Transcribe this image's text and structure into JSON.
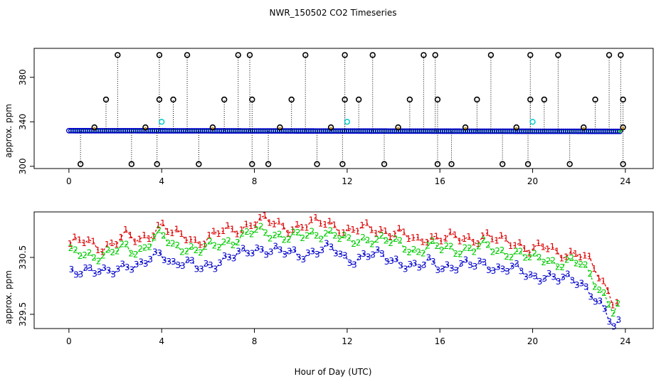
{
  "figure": {
    "title": "NWR_150502  CO2 Timeseries",
    "shared_xlabel": "Hour of Day (UTC)"
  },
  "colors": {
    "black": "#000000",
    "blue": "#0000cc",
    "cyan": "#00cccc",
    "green": "#00cc00",
    "red": "#dd0000",
    "orange": "#cc8800"
  },
  "chart_data": [
    {
      "type": "scatter",
      "panel": "top",
      "title": "",
      "xlabel": "",
      "ylabel": "approx. ppm",
      "xlim": [
        -1.5,
        25.2
      ],
      "ylim": [
        298,
        406
      ],
      "x_ticks": [
        0,
        4,
        8,
        12,
        16,
        20,
        24
      ],
      "y_ticks": [
        300,
        340,
        380
      ],
      "y_tick_labels": [
        "300",
        "340",
        "380"
      ],
      "baseline_series": [
        {
          "name": "blue",
          "x_start": 0.0,
          "x_end": 23.8,
          "y_start": 332.0,
          "y_end": 331.4
        }
      ],
      "spikes": [
        {
          "x": 0.5,
          "y": 302
        },
        {
          "x": 1.1,
          "y": 335
        },
        {
          "x": 1.6,
          "y": 360
        },
        {
          "x": 2.1,
          "y": 400
        },
        {
          "x": 2.7,
          "y": 302
        },
        {
          "x": 3.3,
          "y": 335
        },
        {
          "x": 3.8,
          "y": 302
        },
        {
          "x": 3.9,
          "y": 360
        },
        {
          "x": 3.9,
          "y": 400
        },
        {
          "x": 4.5,
          "y": 360
        },
        {
          "x": 5.1,
          "y": 400
        },
        {
          "x": 5.6,
          "y": 302
        },
        {
          "x": 6.2,
          "y": 335
        },
        {
          "x": 6.7,
          "y": 360
        },
        {
          "x": 7.3,
          "y": 400
        },
        {
          "x": 7.8,
          "y": 400
        },
        {
          "x": 7.9,
          "y": 360
        },
        {
          "x": 7.9,
          "y": 302
        },
        {
          "x": 8.6,
          "y": 302
        },
        {
          "x": 9.1,
          "y": 335
        },
        {
          "x": 9.6,
          "y": 360
        },
        {
          "x": 10.2,
          "y": 400
        },
        {
          "x": 10.7,
          "y": 302
        },
        {
          "x": 11.3,
          "y": 335
        },
        {
          "x": 11.8,
          "y": 302
        },
        {
          "x": 11.9,
          "y": 360
        },
        {
          "x": 11.9,
          "y": 400
        },
        {
          "x": 12.5,
          "y": 360
        },
        {
          "x": 13.1,
          "y": 400
        },
        {
          "x": 13.6,
          "y": 302
        },
        {
          "x": 14.2,
          "y": 335
        },
        {
          "x": 14.7,
          "y": 360
        },
        {
          "x": 15.3,
          "y": 400
        },
        {
          "x": 15.8,
          "y": 400
        },
        {
          "x": 15.9,
          "y": 360
        },
        {
          "x": 15.9,
          "y": 302
        },
        {
          "x": 16.5,
          "y": 302
        },
        {
          "x": 17.1,
          "y": 335
        },
        {
          "x": 17.6,
          "y": 360
        },
        {
          "x": 18.2,
          "y": 400
        },
        {
          "x": 18.7,
          "y": 302
        },
        {
          "x": 19.3,
          "y": 335
        },
        {
          "x": 19.8,
          "y": 302
        },
        {
          "x": 19.9,
          "y": 360
        },
        {
          "x": 19.9,
          "y": 400
        },
        {
          "x": 20.5,
          "y": 360
        },
        {
          "x": 21.1,
          "y": 400
        },
        {
          "x": 21.6,
          "y": 302
        },
        {
          "x": 22.2,
          "y": 335
        },
        {
          "x": 22.7,
          "y": 360
        },
        {
          "x": 23.3,
          "y": 400
        },
        {
          "x": 23.8,
          "y": 400
        },
        {
          "x": 23.9,
          "y": 360
        },
        {
          "x": 23.9,
          "y": 302
        },
        {
          "x": 23.9,
          "y": 335
        }
      ],
      "cyan_points": [
        {
          "x": 4.0,
          "y": 340
        },
        {
          "x": 12.0,
          "y": 340
        },
        {
          "x": 20.0,
          "y": 340
        }
      ]
    },
    {
      "type": "line",
      "panel": "bottom",
      "title": "",
      "xlabel": "Hour of Day (UTC)",
      "ylabel": "approx. ppm",
      "xlim": [
        -1.5,
        25.2
      ],
      "ylim": [
        329.25,
        331.3
      ],
      "x_ticks": [
        0,
        4,
        8,
        12,
        16,
        20,
        24
      ],
      "y_ticks": [
        329.5,
        330.5
      ],
      "y_tick_labels": [
        "329.5",
        "330.5"
      ],
      "marker_offsets": [
        {
          "name": "1",
          "color": "red",
          "offset": 0.18
        },
        {
          "name": "2",
          "color": "green",
          "offset": 0.0
        },
        {
          "name": "3",
          "color": "blue",
          "offset": -0.3
        }
      ],
      "series": [
        {
          "name": "level 2",
          "x": [
            0.0,
            0.5,
            1.0,
            1.5,
            2.0,
            2.5,
            3.0,
            3.5,
            4.0,
            4.5,
            5.0,
            5.5,
            6.0,
            6.5,
            7.0,
            7.5,
            8.0,
            8.5,
            9.0,
            9.5,
            10.0,
            10.5,
            11.0,
            11.5,
            12.0,
            12.5,
            13.0,
            13.5,
            14.0,
            14.5,
            15.0,
            15.5,
            16.0,
            16.5,
            17.0,
            17.5,
            18.0,
            18.5,
            19.0,
            19.5,
            20.0,
            20.5,
            21.0,
            21.5,
            22.0,
            22.5,
            23.0,
            23.5,
            23.8
          ],
          "values": [
            330.55,
            330.6,
            330.55,
            330.5,
            330.6,
            330.7,
            330.6,
            330.75,
            330.9,
            330.7,
            330.7,
            330.6,
            330.65,
            330.75,
            330.8,
            330.85,
            330.95,
            330.95,
            330.9,
            330.85,
            330.85,
            330.9,
            330.95,
            330.9,
            330.75,
            330.8,
            330.85,
            330.8,
            330.75,
            330.7,
            330.6,
            330.7,
            330.65,
            330.65,
            330.65,
            330.65,
            330.7,
            330.6,
            330.6,
            330.55,
            330.45,
            330.5,
            330.4,
            330.4,
            330.4,
            330.2,
            329.9,
            329.55,
            329.65
          ]
        }
      ]
    }
  ]
}
